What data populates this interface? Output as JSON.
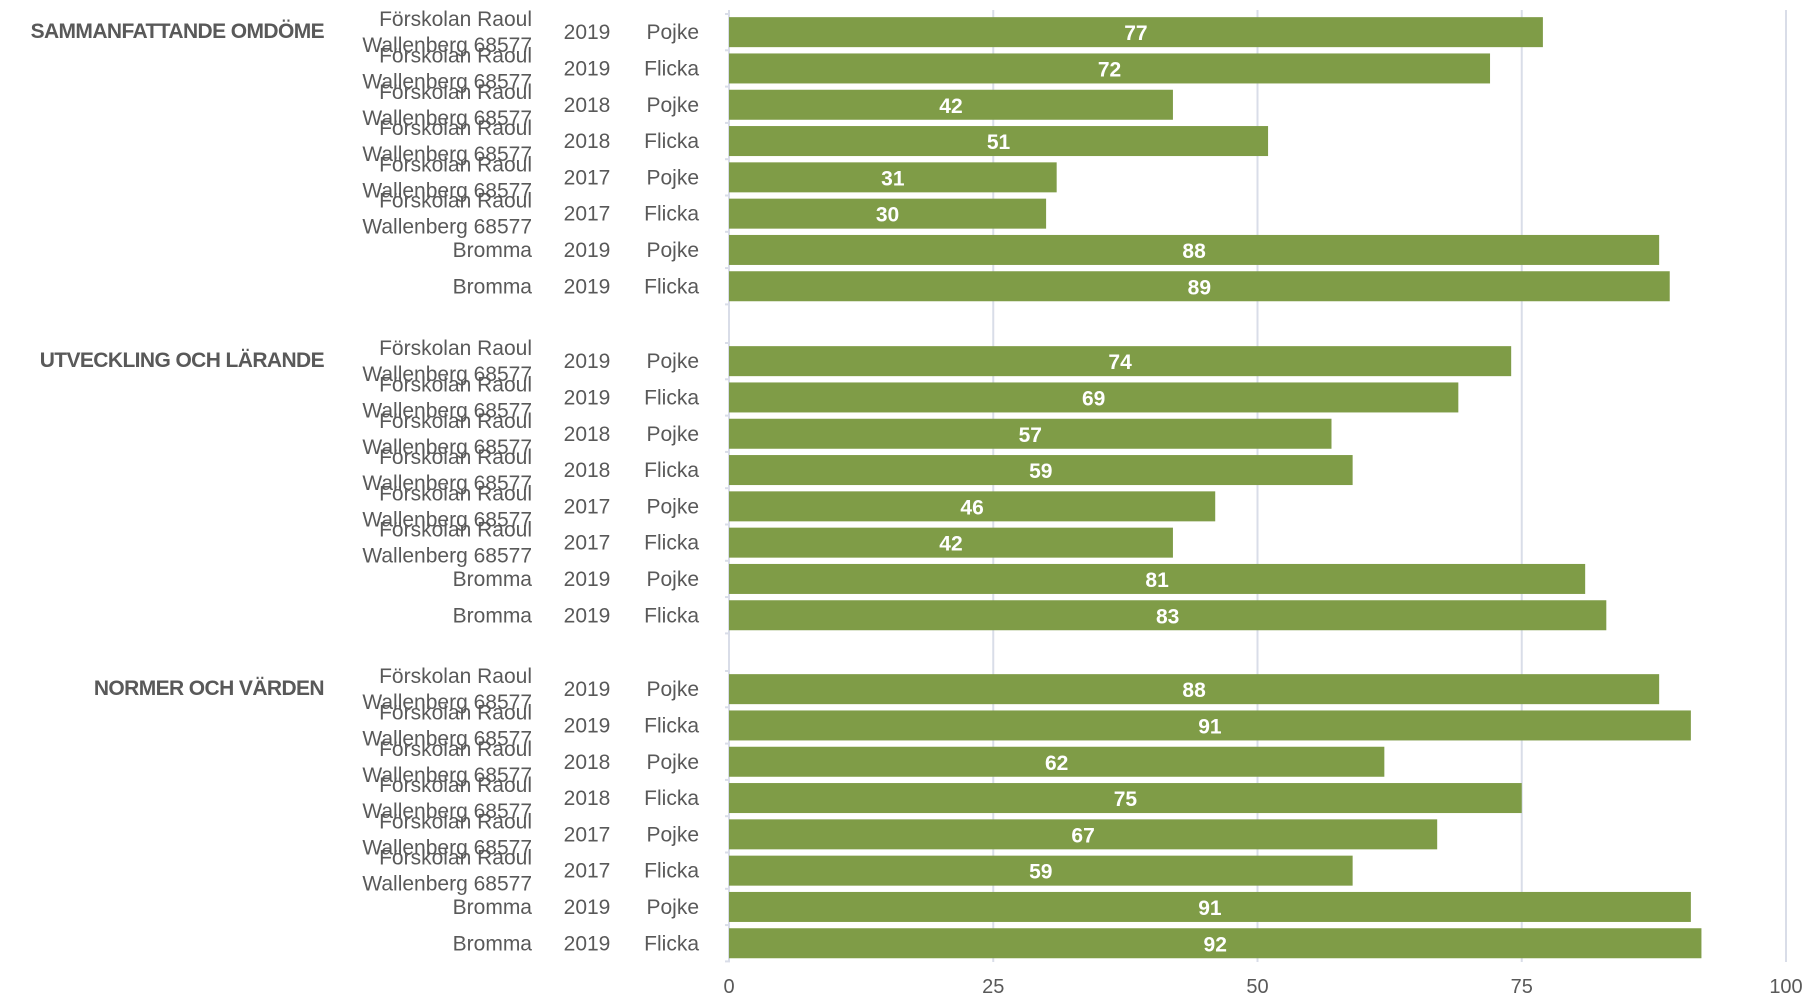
{
  "chart_data": {
    "type": "bar",
    "orientation": "horizontal",
    "xlim": [
      0,
      100
    ],
    "x_ticks": [
      "0",
      "25",
      "50",
      "75",
      "100"
    ],
    "grid": true,
    "bar_color": "#7F9C47",
    "grid_color": "#D9DDE8",
    "groups": [
      {
        "label": "SAMMANFATTANDE OMDÖME",
        "rows": [
          {
            "unit": "Förskolan Raoul Wallenberg 68577",
            "year": "2019",
            "gender": "Pojke",
            "value": 77
          },
          {
            "unit": "Förskolan Raoul Wallenberg 68577",
            "year": "2019",
            "gender": "Flicka",
            "value": 72
          },
          {
            "unit": "Förskolan Raoul Wallenberg 68577",
            "year": "2018",
            "gender": "Pojke",
            "value": 42
          },
          {
            "unit": "Förskolan Raoul Wallenberg 68577",
            "year": "2018",
            "gender": "Flicka",
            "value": 51
          },
          {
            "unit": "Förskolan Raoul Wallenberg 68577",
            "year": "2017",
            "gender": "Pojke",
            "value": 31
          },
          {
            "unit": "Förskolan Raoul Wallenberg 68577",
            "year": "2017",
            "gender": "Flicka",
            "value": 30
          },
          {
            "unit": "Bromma",
            "year": "2019",
            "gender": "Pojke",
            "value": 88
          },
          {
            "unit": "Bromma",
            "year": "2019",
            "gender": "Flicka",
            "value": 89
          }
        ]
      },
      {
        "label": "UTVECKLING OCH LÄRANDE",
        "rows": [
          {
            "unit": "Förskolan Raoul Wallenberg 68577",
            "year": "2019",
            "gender": "Pojke",
            "value": 74
          },
          {
            "unit": "Förskolan Raoul Wallenberg 68577",
            "year": "2019",
            "gender": "Flicka",
            "value": 69
          },
          {
            "unit": "Förskolan Raoul Wallenberg 68577",
            "year": "2018",
            "gender": "Pojke",
            "value": 57
          },
          {
            "unit": "Förskolan Raoul Wallenberg 68577",
            "year": "2018",
            "gender": "Flicka",
            "value": 59
          },
          {
            "unit": "Förskolan Raoul Wallenberg 68577",
            "year": "2017",
            "gender": "Pojke",
            "value": 46
          },
          {
            "unit": "Förskolan Raoul Wallenberg 68577",
            "year": "2017",
            "gender": "Flicka",
            "value": 42
          },
          {
            "unit": "Bromma",
            "year": "2019",
            "gender": "Pojke",
            "value": 81
          },
          {
            "unit": "Bromma",
            "year": "2019",
            "gender": "Flicka",
            "value": 83
          }
        ]
      },
      {
        "label": "NORMER OCH VÄRDEN",
        "rows": [
          {
            "unit": "Förskolan Raoul Wallenberg 68577",
            "year": "2019",
            "gender": "Pojke",
            "value": 88
          },
          {
            "unit": "Förskolan Raoul Wallenberg 68577",
            "year": "2019",
            "gender": "Flicka",
            "value": 91
          },
          {
            "unit": "Förskolan Raoul Wallenberg 68577",
            "year": "2018",
            "gender": "Pojke",
            "value": 62
          },
          {
            "unit": "Förskolan Raoul Wallenberg 68577",
            "year": "2018",
            "gender": "Flicka",
            "value": 75
          },
          {
            "unit": "Förskolan Raoul Wallenberg 68577",
            "year": "2017",
            "gender": "Pojke",
            "value": 67
          },
          {
            "unit": "Förskolan Raoul Wallenberg 68577",
            "year": "2017",
            "gender": "Flicka",
            "value": 59
          },
          {
            "unit": "Bromma",
            "year": "2019",
            "gender": "Pojke",
            "value": 91
          },
          {
            "unit": "Bromma",
            "year": "2019",
            "gender": "Flicka",
            "value": 92
          }
        ]
      }
    ]
  }
}
